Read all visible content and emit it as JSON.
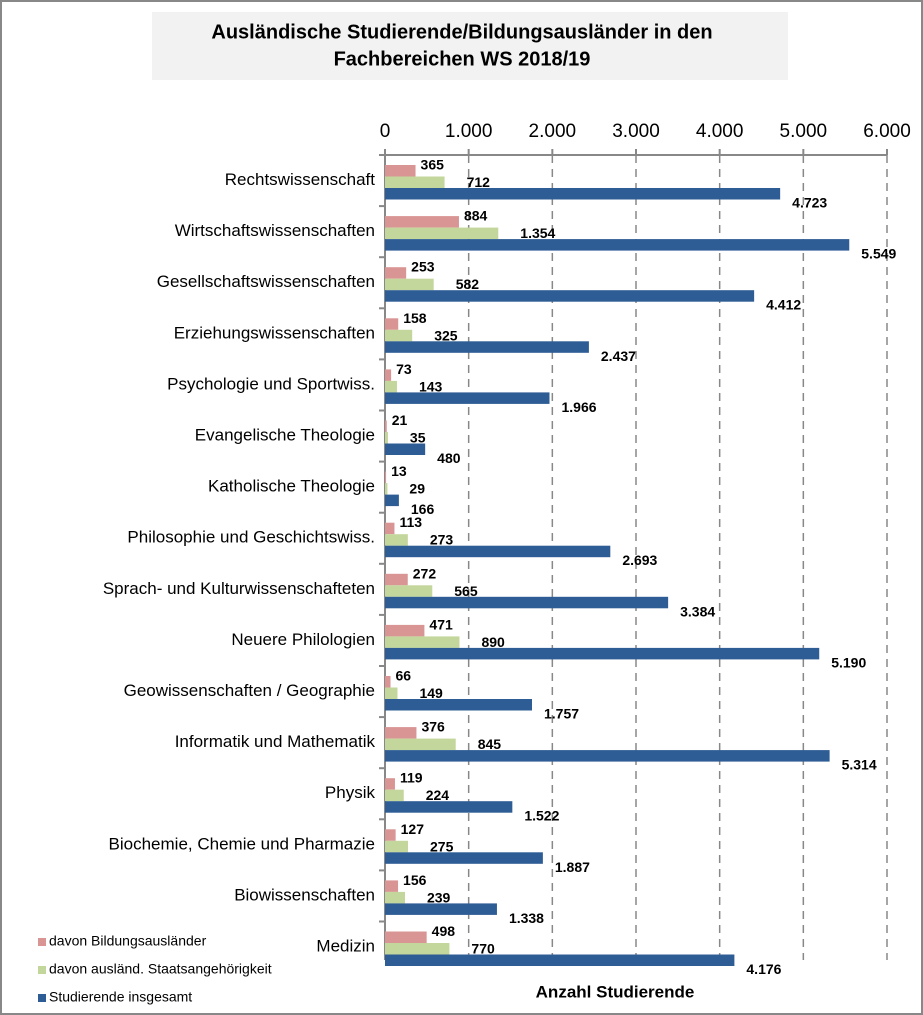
{
  "chart_data": {
    "type": "barh",
    "title": [
      "Ausländische  Studierende/Bildungsausländer   in den",
      "Fachbereichen  WS 2018/19"
    ],
    "x_label": "Anzahl Studierende",
    "categories": [
      "Rechtswissenschaft",
      "Wirtschaftswissenschaften",
      "Gesellschaftswissenschaften",
      "Erziehungswissenschaften",
      "Psychologie und Sportwiss.",
      "Evangelische Theologie",
      "Katholische Theologie",
      "Philosophie und Geschichtswiss.",
      "Sprach- und Kulturwissenschafteten",
      "Neuere Philologien",
      "Geowissenschaften / Geographie",
      "Informatik und Mathematik",
      "Physik",
      "Biochemie, Chemie und Pharmazie",
      "Biowissenschaften",
      "Medizin"
    ],
    "series": [
      {
        "name": "davon Bildungsausländer",
        "color": "#d99594",
        "values": [
          365,
          884,
          253,
          158,
          73,
          21,
          13,
          113,
          272,
          471,
          66,
          376,
          119,
          127,
          156,
          498
        ],
        "value_labels": [
          "365",
          "884",
          "253",
          "158",
          "73",
          "21",
          "13",
          "113",
          "272",
          "471",
          "66",
          "376",
          "119",
          "127",
          "156",
          "498"
        ]
      },
      {
        "name": "davon ausländ. Staatsangehörigkeit",
        "color": "#c3d69b",
        "values": [
          712,
          1354,
          582,
          325,
          143,
          35,
          29,
          273,
          565,
          890,
          149,
          845,
          224,
          275,
          239,
          770
        ],
        "value_labels": [
          "712",
          "1.354",
          "582",
          "325",
          "143",
          "35",
          "29",
          "273",
          "565",
          "890",
          "149",
          "845",
          "224",
          "275",
          "239",
          "770"
        ]
      },
      {
        "name": "Studierende insgesamt",
        "color": "#2e5c94",
        "values": [
          4723,
          5549,
          4412,
          2437,
          1966,
          480,
          166,
          2693,
          3384,
          5190,
          1757,
          5314,
          1522,
          1887,
          1338,
          4176
        ],
        "value_labels": [
          "4.723",
          "5.549",
          "4.412",
          "2.437",
          "1.966",
          "480",
          "166",
          "2.693",
          "3.384",
          "5.190",
          "1.757",
          "5.314",
          "1.522",
          "1.887",
          "1.338",
          "4.176"
        ]
      }
    ],
    "xlim": [
      0,
      6000
    ],
    "xticks": [
      0,
      {
        "value": 1000,
        "label": "1.000"
      },
      {
        "value": 2000,
        "label": "2.000"
      },
      {
        "value": 3000,
        "label": "3.000"
      },
      {
        "value": 4000,
        "label": "4.000"
      },
      {
        "value": 5000,
        "label": "5.000"
      },
      {
        "value": 6000,
        "label": "6.000"
      }
    ],
    "grid": true,
    "legend": "bottom-left"
  }
}
